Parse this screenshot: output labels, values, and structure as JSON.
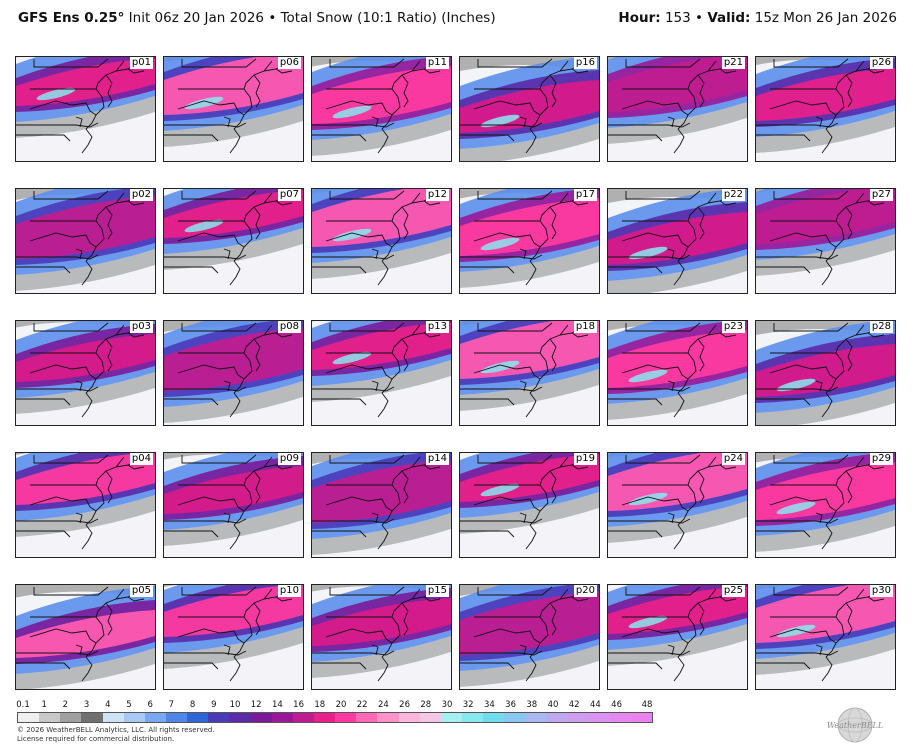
{
  "header": {
    "model": "GFS Ens 0.25°",
    "init": "Init 06z 20 Jan 2026",
    "bullet": "•",
    "product": "Total Snow (10:1 Ratio) (Inches)",
    "hour_label": "Hour:",
    "hour_value": "153",
    "valid_label": "Valid:",
    "valid_value": "15z Mon 26 Jan 2026"
  },
  "panels": [
    [
      "p01",
      "p06",
      "p11",
      "p16",
      "p21",
      "p26"
    ],
    [
      "p02",
      "p07",
      "p12",
      "p17",
      "p22",
      "p27"
    ],
    [
      "p03",
      "p08",
      "p13",
      "p18",
      "p23",
      "p28"
    ],
    [
      "p04",
      "p09",
      "p14",
      "p19",
      "p24",
      "p29"
    ],
    [
      "p05",
      "p10",
      "p15",
      "p20",
      "p25",
      "p30"
    ]
  ],
  "colorbar": {
    "labels": [
      "0.1",
      "1",
      "2",
      "3",
      "4",
      "5",
      "6",
      "7",
      "8",
      "9",
      "10",
      "12",
      "14",
      "16",
      "18",
      "20",
      "22",
      "24",
      "26",
      "28",
      "30",
      "32",
      "34",
      "36",
      "38",
      "40",
      "42",
      "44",
      "46",
      "48"
    ],
    "colors": [
      "#efefef",
      "#c8c8c8",
      "#a0a0a0",
      "#707070",
      "#cfe2f7",
      "#a8c8f5",
      "#7aa8f0",
      "#4f86e8",
      "#2e66d8",
      "#4a3ab8",
      "#5a2aa8",
      "#7a1a98",
      "#9a1898",
      "#c01c90",
      "#e8208a",
      "#ff3aa0",
      "#ff6ab8",
      "#ff92c8",
      "#ffb6dc",
      "#f4c8e4",
      "#a8f0f0",
      "#88e8f0",
      "#70dcec",
      "#88c8f0",
      "#a8b8f0",
      "#c0a8f0",
      "#d09cf0",
      "#dc92f0",
      "#e488f0",
      "#ec80f0"
    ]
  },
  "footer": {
    "copyright": "© 2026 WeatherBELL Analytics, LLC. All rights reserved.",
    "license": "License required for commercial distribution.",
    "logo_text": "WeatherBELL",
    "logo_icon": "globe-logo-icon"
  }
}
